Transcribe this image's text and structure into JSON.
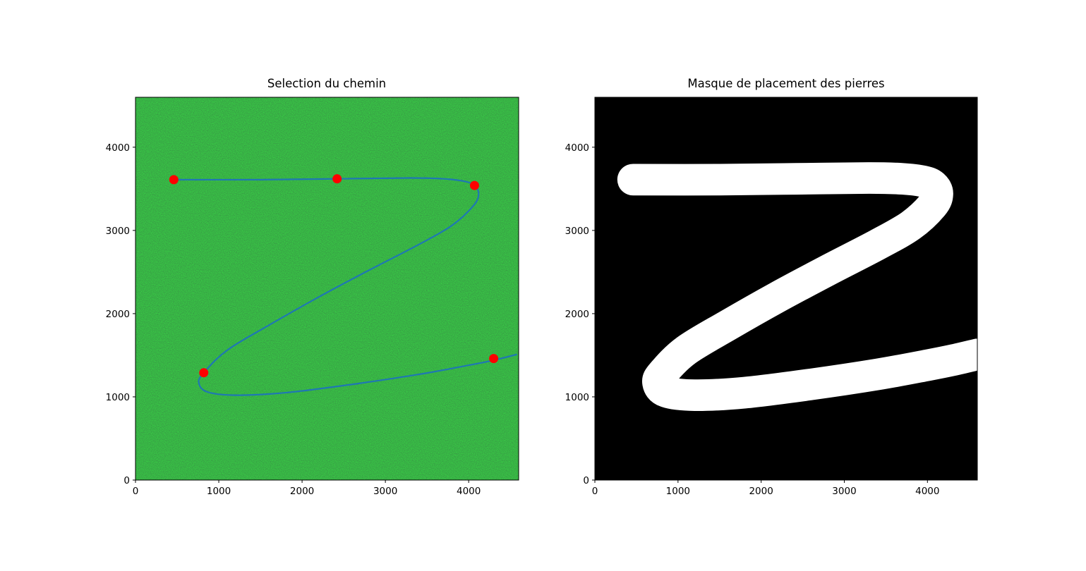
{
  "chart_data": [
    {
      "type": "line",
      "title": "Selection du chemin",
      "xlabel": "",
      "ylabel": "",
      "xlim": [
        0,
        4600
      ],
      "ylim": [
        0,
        4600
      ],
      "xticks": [
        "0",
        "1000",
        "2000",
        "3000",
        "4000"
      ],
      "yticks": [
        "0",
        "1000",
        "2000",
        "3000",
        "4000"
      ],
      "background": "green grass texture",
      "grid": false,
      "series": [
        {
          "kind": "scatter",
          "color": "#ff0000",
          "points": [
            [
              460,
              3610
            ],
            [
              2420,
              3620
            ],
            [
              4070,
              3540
            ],
            [
              820,
              1290
            ],
            [
              4300,
              1460
            ]
          ]
        },
        {
          "kind": "line",
          "color": "#1f77b4",
          "points": [
            [
              460,
              3610
            ],
            [
              1500,
              3610
            ],
            [
              2420,
              3620
            ],
            [
              3300,
              3630
            ],
            [
              3700,
              3620
            ],
            [
              3950,
              3590
            ],
            [
              4070,
              3540
            ],
            [
              4120,
              3440
            ],
            [
              4060,
              3300
            ],
            [
              3800,
              3060
            ],
            [
              3400,
              2830
            ],
            [
              2800,
              2520
            ],
            [
              2200,
              2200
            ],
            [
              1600,
              1860
            ],
            [
              1100,
              1560
            ],
            [
              820,
              1290
            ],
            [
              760,
              1170
            ],
            [
              860,
              1060
            ],
            [
              1200,
              1020
            ],
            [
              1800,
              1050
            ],
            [
              2600,
              1150
            ],
            [
              3400,
              1270
            ],
            [
              4000,
              1380
            ],
            [
              4300,
              1440
            ],
            [
              4580,
              1510
            ]
          ]
        }
      ]
    },
    {
      "type": "heatmap",
      "title": "Masque de placement des pierres",
      "xlabel": "",
      "ylabel": "",
      "xlim": [
        0,
        4600
      ],
      "ylim": [
        0,
        4600
      ],
      "xticks": [
        "0",
        "1000",
        "2000",
        "3000",
        "4000"
      ],
      "yticks": [
        "0",
        "1000",
        "2000",
        "3000",
        "4000"
      ],
      "grid": false,
      "colors": {
        "background": "#000000",
        "mask": "#ffffff"
      },
      "mask_path_points": [
        [
          460,
          3610
        ],
        [
          1500,
          3610
        ],
        [
          2420,
          3620
        ],
        [
          3300,
          3630
        ],
        [
          3700,
          3620
        ],
        [
          3950,
          3590
        ],
        [
          4070,
          3540
        ],
        [
          4120,
          3440
        ],
        [
          4060,
          3300
        ],
        [
          3800,
          3060
        ],
        [
          3400,
          2830
        ],
        [
          2800,
          2520
        ],
        [
          2200,
          2200
        ],
        [
          1600,
          1860
        ],
        [
          1100,
          1560
        ],
        [
          820,
          1290
        ],
        [
          760,
          1170
        ],
        [
          860,
          1060
        ],
        [
          1200,
          1020
        ],
        [
          1800,
          1050
        ],
        [
          2600,
          1150
        ],
        [
          3400,
          1270
        ],
        [
          4000,
          1380
        ],
        [
          4300,
          1440
        ],
        [
          4600,
          1510
        ]
      ],
      "mask_half_width": 190
    }
  ]
}
